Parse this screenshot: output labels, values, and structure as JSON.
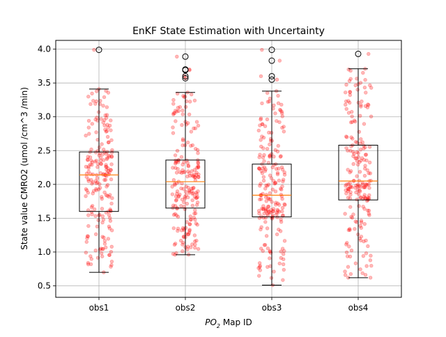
{
  "chart_data": {
    "type": "box",
    "title": "EnKF State Estimation with Uncertainty",
    "xlabel_main": "PO",
    "xlabel_sub": "2",
    "xlabel_rest": " Map ID",
    "ylabel": "State value CMRO2 (umol /cm^3 /min)",
    "categories": [
      "obs1",
      "obs2",
      "obs3",
      "obs4"
    ],
    "ylim": [
      0.33,
      4.13
    ],
    "yticks": [
      0.5,
      1.0,
      1.5,
      2.0,
      2.5,
      3.0,
      3.5,
      4.0
    ],
    "ytick_labels": [
      "0.5",
      "1.0",
      "1.5",
      "2.0",
      "2.5",
      "3.0",
      "3.5",
      "4.0"
    ],
    "grid": true,
    "boxes": [
      {
        "name": "obs1",
        "whisker_low": 0.7,
        "q1": 1.6,
        "median": 2.14,
        "q3": 2.48,
        "whisker_high": 3.41,
        "outliers": [
          3.99
        ]
      },
      {
        "name": "obs2",
        "whisker_low": 0.96,
        "q1": 1.65,
        "median": 2.04,
        "q3": 2.36,
        "whisker_high": 3.36,
        "outliers": [
          3.57,
          3.6,
          3.69,
          3.7,
          3.89
        ]
      },
      {
        "name": "obs3",
        "whisker_low": 0.51,
        "q1": 1.52,
        "median": 1.84,
        "q3": 2.3,
        "whisker_high": 3.38,
        "outliers": [
          3.55,
          3.6,
          3.83,
          3.99
        ]
      },
      {
        "name": "obs4",
        "whisker_low": 0.62,
        "q1": 1.77,
        "median": 2.05,
        "q3": 2.58,
        "whisker_high": 3.71,
        "outliers": [
          3.93
        ]
      }
    ],
    "scatter_color": "#ff0000",
    "median_color": "#ff7f0e",
    "box_color": "#000000",
    "grid_color": "#b0b0b0"
  }
}
